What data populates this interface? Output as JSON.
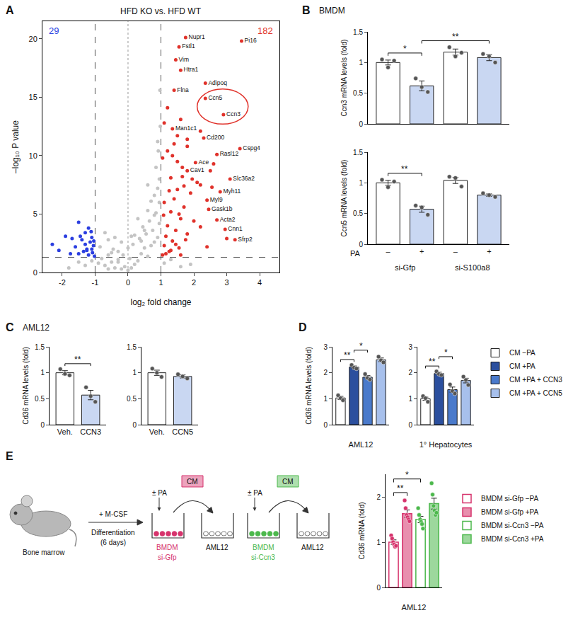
{
  "chart_data": [
    {
      "panel": "A",
      "type": "scatter",
      "title": "HFD KO vs. HFD WT",
      "x_label": "log₂ fold change",
      "y_label": "–log₁₀ P value",
      "xlim": [
        -2.6,
        4.6
      ],
      "xticks": [
        -2,
        -1,
        0,
        1,
        2,
        3,
        4
      ],
      "ylim": [
        0,
        21.5
      ],
      "yticks": [
        0,
        5,
        10,
        15,
        20
      ],
      "grid": false,
      "thresholds": {
        "x": [
          -1,
          1
        ],
        "y": 1.3,
        "center": 0
      },
      "counts": [
        {
          "label": "29",
          "color": "#2b3ee0"
        },
        {
          "label": "182",
          "color": "#e0322b"
        }
      ],
      "highlight": [
        "Ccn5",
        "Ccn3"
      ],
      "series": [
        {
          "color": "#c4c4c4",
          "x": [
            -0.9,
            -0.8,
            -0.7,
            -0.6,
            -0.5,
            -0.4,
            -0.3,
            -0.2,
            -0.1,
            0,
            0.1,
            0.2,
            0.3,
            0.4,
            0.5,
            0.6,
            0.7,
            0.8,
            0.9,
            -0.85,
            -0.6,
            -0.45,
            -0.3,
            -0.15,
            0.05,
            0.15,
            0.35,
            0.55,
            0.75,
            0.95,
            -0.7,
            -0.4,
            -0.2,
            0.2,
            0.45,
            0.65,
            0.85,
            0.95,
            -0.5,
            0.3,
            0.6,
            0.8,
            0.9,
            0.95,
            0.7,
            0.85,
            0.92,
            0.98,
            -1.5,
            -1.3,
            -1.1,
            1.1,
            1.3,
            1.6,
            -1.8,
            1.9,
            0.6,
            0.8,
            0.9,
            0.97,
            0.5,
            0.4,
            -0.3,
            -0.6,
            0.0,
            0.1
          ],
          "values": [
            0.8,
            1.2,
            0.6,
            1.5,
            0.9,
            0.4,
            1.1,
            0.3,
            0.5,
            0.2,
            0.4,
            0.7,
            1.0,
            1.6,
            2.1,
            1.4,
            2.3,
            2.6,
            3.0,
            2.2,
            2.8,
            2.0,
            1.8,
            1.5,
            1.2,
            2.4,
            2.9,
            3.3,
            3.6,
            4.2,
            3.4,
            3.0,
            2.6,
            3.2,
            3.9,
            4.4,
            5.1,
            6.0,
            1.7,
            4.6,
            5.3,
            6.6,
            7.2,
            8.0,
            6.1,
            9.0,
            10.4,
            12.5,
            0.9,
            0.6,
            1.0,
            0.8,
            1.1,
            0.5,
            0.4,
            0.7,
            7.5,
            4.9,
            11.2,
            15.6,
            3.6,
            2.7,
            0.9,
            0.3,
            2.1,
            3.1
          ]
        },
        {
          "color": "#2b3ee0",
          "x": [
            -2.3,
            -2.1,
            -1.9,
            -1.75,
            -1.6,
            -1.5,
            -1.4,
            -1.35,
            -1.3,
            -1.25,
            -1.2,
            -1.15,
            -1.1,
            -1.08,
            -1.05,
            -1.02,
            -1.5,
            -1.3,
            -1.2,
            -1.1,
            -1.7,
            -1.45,
            -1.25,
            -1.12,
            -1.04
          ],
          "values": [
            2.4,
            1.9,
            3.1,
            1.6,
            2.2,
            4.3,
            2.8,
            1.8,
            3.4,
            2.0,
            1.5,
            2.6,
            3.0,
            1.7,
            2.3,
            1.4,
            1.6,
            2.4,
            3.8,
            2.0,
            2.9,
            3.1,
            1.9,
            3.5,
            2.7
          ]
        },
        {
          "color": "#e0322b",
          "x": [
            1.05,
            1.1,
            1.15,
            1.2,
            1.25,
            1.3,
            1.35,
            1.4,
            1.45,
            1.5,
            1.55,
            1.6,
            1.65,
            1.7,
            1.8,
            1.9,
            2.0,
            2.1,
            2.2,
            2.5,
            2.55,
            2.6,
            1.05,
            1.1,
            1.2,
            1.3,
            1.4,
            1.5,
            1.6,
            1.7,
            1.8,
            1.95,
            2.2,
            1.1,
            1.2,
            1.35,
            1.5,
            1.65,
            1.8,
            2.2,
            1.15,
            1.3,
            1.45,
            1.6,
            1.75,
            2.4,
            3.0,
            1.08,
            1.25,
            1.55
          ],
          "values": [
            1.5,
            2.3,
            3.1,
            4.0,
            1.8,
            5.2,
            2.7,
            6.3,
            3.6,
            7.1,
            2.1,
            4.6,
            8.2,
            5.6,
            3.3,
            6.8,
            4.4,
            7.7,
            3.9,
            8.7,
            7.3,
            9.3,
            9.8,
            6.0,
            10.4,
            8.1,
            11.0,
            9.5,
            13.1,
            7.4,
            10.8,
            8.0,
            12.1,
            12.8,
            14.1,
            10.0,
            11.7,
            9.0,
            11.4,
            7.5,
            1.6,
            1.9,
            2.4,
            1.5,
            2.8,
            2.2,
            2.9,
            4.9,
            7.0,
            5.0
          ]
        },
        {
          "color": "#e0322b",
          "x": [
            1.75,
            1.55,
            3.45,
            1.45,
            1.6,
            2.35,
            1.4,
            2.35,
            2.9,
            1.35,
            2.3,
            3.4,
            2.7,
            2.05,
            1.8,
            3.1,
            2.8,
            2.4,
            2.45,
            2.7,
            2.95,
            3.25
          ],
          "values": [
            20.1,
            19.3,
            19.8,
            18.2,
            17.3,
            16.2,
            15.6,
            14.9,
            13.5,
            12.3,
            11.5,
            10.6,
            10.1,
            9.4,
            8.7,
            8.0,
            6.9,
            6.2,
            5.4,
            4.5,
            3.7,
            2.8
          ],
          "labels": [
            "Nupr1",
            "Fstl1",
            "Pi16",
            "Vim",
            "Htra1",
            "Adipoq",
            "Flna",
            "Ccn5",
            "Ccn3",
            "Man1c1",
            "Cd200",
            "Cspg4",
            "Rasl12",
            "Ace",
            "Cav1",
            "Slc36a2",
            "Myh11",
            "Myl9",
            "Gask1b",
            "Acta2",
            "Cnn1",
            "Sfrp2"
          ]
        }
      ]
    },
    {
      "panel": "B",
      "type": "bar",
      "title": "BMDM",
      "y_label": "Ccn3 mRNA levels (fold)",
      "categories": [
        "–",
        "+",
        "–",
        "+"
      ],
      "tick_labels": "y",
      "colors": [
        "#ffffff",
        "#c9d7f2",
        "#ffffff",
        "#c9d7f2"
      ],
      "values": [
        1.0,
        0.62,
        1.17,
        1.08
      ],
      "errors": [
        0.04,
        0.08,
        0.05,
        0.05
      ],
      "points": [
        [
          1.05,
          0.92,
          1.03
        ],
        [
          0.74,
          0.6,
          0.52
        ],
        [
          1.25,
          1.1,
          1.16
        ],
        [
          1.14,
          1.1,
          1.0
        ]
      ],
      "ylim": [
        0,
        1.5
      ],
      "yticks": [
        0,
        0.5,
        1,
        1.5
      ],
      "significance": [
        {
          "from": 0,
          "to": 1,
          "label": "*"
        },
        {
          "from": 1,
          "to": 3,
          "label": "**"
        }
      ]
    },
    {
      "type": "bar",
      "y_label": "Ccn5 mRNA levels (fold)",
      "categories": [
        "–",
        "+",
        "–",
        "+"
      ],
      "row_label": "PA",
      "groups": [
        {
          "label": "si-Gfp",
          "from": 0,
          "to": 1
        },
        {
          "label": "si-S100a8",
          "from": 2,
          "to": 3
        }
      ],
      "colors": [
        "#ffffff",
        "#c9d7f2",
        "#ffffff",
        "#c9d7f2"
      ],
      "values": [
        1.0,
        0.57,
        1.04,
        0.8
      ],
      "errors": [
        0.04,
        0.05,
        0.05,
        0.02
      ],
      "points": [
        [
          1.05,
          0.93,
          1.02
        ],
        [
          0.63,
          0.6,
          0.48
        ],
        [
          1.1,
          1.08,
          0.94
        ],
        [
          0.83,
          0.8,
          0.77
        ]
      ],
      "ylim": [
        0,
        1.5
      ],
      "yticks": [
        0,
        0.5,
        1,
        1.5
      ],
      "significance": [
        {
          "from": 0,
          "to": 1,
          "label": "**"
        }
      ]
    },
    {
      "panel": "C",
      "type": "bar",
      "title": "AML12",
      "y_label": "Cd36 mRNA levels (fold)",
      "categories": [
        "Veh.",
        "CCN3"
      ],
      "colors": [
        "#ffffff",
        "#c9d7f2"
      ],
      "values": [
        1.0,
        0.57
      ],
      "errors": [
        0.04,
        0.09
      ],
      "points": [
        [
          1.07,
          0.98,
          0.95
        ],
        [
          0.72,
          0.55,
          0.44
        ]
      ],
      "ylim": [
        0,
        1.5
      ],
      "yticks": [
        0,
        0.5,
        1,
        1.5
      ],
      "significance": [
        {
          "from": 0,
          "to": 1,
          "label": "**"
        }
      ]
    },
    {
      "type": "bar",
      "categories": [
        "Veh.",
        "CCN5"
      ],
      "colors": [
        "#ffffff",
        "#c9d7f2"
      ],
      "values": [
        1.0,
        0.93
      ],
      "errors": [
        0.05,
        0.03
      ],
      "points": [
        [
          1.08,
          1.0,
          0.92
        ],
        [
          0.97,
          0.93,
          0.89
        ]
      ],
      "ylim": [
        0,
        1.5
      ],
      "yticks": [
        0,
        0.5,
        1,
        1.5
      ]
    },
    {
      "panel": "D",
      "type": "bar",
      "x_label": "AML12",
      "y_label": "Cd36 mRNA levels (fold)",
      "tick_labels": "y",
      "legend": "right",
      "ylim": [
        0,
        3
      ],
      "yticks": [
        0,
        1,
        2,
        3
      ],
      "series": [
        {
          "name": "CM −PA",
          "color": "#ffffff",
          "values": [
            1.03
          ],
          "errors": [
            0.06
          ],
          "points": [
            [
              1.13,
              1.02,
              0.94
            ]
          ]
        },
        {
          "name": "CM +PA",
          "color": "#2b4f9e",
          "values": [
            2.22
          ],
          "errors": [
            0.04
          ],
          "points": [
            [
              2.3,
              2.2,
              2.16
            ]
          ]
        },
        {
          "name": "CM +PA + CCN3",
          "color": "#4a7acb",
          "values": [
            1.83
          ],
          "errors": [
            0.06
          ],
          "points": [
            [
              1.95,
              1.8,
              1.74
            ]
          ]
        },
        {
          "name": "CM +PA + CCN5",
          "color": "#a7c0ec",
          "values": [
            2.5
          ],
          "errors": [
            0.07
          ],
          "points": [
            [
              2.62,
              2.48,
              2.4
            ]
          ]
        }
      ],
      "significance": [
        {
          "from": 0,
          "to": 1,
          "label": "**"
        },
        {
          "from": 1,
          "to": 2,
          "label": "*"
        }
      ]
    },
    {
      "type": "bar",
      "x_label": "1° Hepatocytes",
      "tick_labels": "y",
      "ylim": [
        0,
        3
      ],
      "yticks": [
        0,
        1,
        2,
        3
      ],
      "series": [
        {
          "name": "CM −PA",
          "color": "#ffffff",
          "values": [
            1.0
          ],
          "errors": [
            0.06
          ],
          "points": [
            [
              1.1,
              1.02,
              0.88
            ]
          ]
        },
        {
          "name": "CM +PA",
          "color": "#2b4f9e",
          "values": [
            1.97
          ],
          "errors": [
            0.05
          ],
          "points": [
            [
              2.05,
              1.95,
              1.91
            ]
          ]
        },
        {
          "name": "CM +PA + CCN3",
          "color": "#4a7acb",
          "values": [
            1.35
          ],
          "errors": [
            0.1
          ],
          "points": [
            [
              1.55,
              1.3,
              1.2
            ]
          ]
        },
        {
          "name": "CM +PA + CCN5",
          "color": "#a7c0ec",
          "values": [
            1.7
          ],
          "errors": [
            0.09
          ],
          "points": [
            [
              1.85,
              1.72,
              1.53
            ]
          ]
        }
      ],
      "significance": [
        {
          "from": 0,
          "to": 1,
          "label": "**"
        },
        {
          "from": 1,
          "to": 2,
          "label": "*"
        }
      ]
    },
    {
      "type": "bar",
      "x_label": "AML12",
      "y_label": "Cd36 mRNA (fold)",
      "tick_labels": "y",
      "legend": "right",
      "ylim": [
        0,
        2.5
      ],
      "yticks": [
        0,
        1,
        2
      ],
      "series": [
        {
          "name": "BMDM si-Gfp −PA",
          "color": "#d6336c",
          "marker": "open",
          "values": [
            1.0
          ],
          "errors": [
            0.05
          ],
          "points": [
            [
              1.15,
              1.08,
              1.0,
              0.95,
              0.9,
              0.92
            ]
          ]
        },
        {
          "name": "BMDM si-Gfp +PA",
          "color": "#d6336c",
          "marker": "filled",
          "values": [
            1.63
          ],
          "errors": [
            0.08
          ],
          "points": [
            [
              1.92,
              1.75,
              1.6,
              1.55,
              1.5,
              1.46
            ]
          ]
        },
        {
          "name": "BMDM si-Ccn3 −PA",
          "color": "#4cb84c",
          "marker": "open",
          "values": [
            1.5
          ],
          "errors": [
            0.07
          ],
          "points": [
            [
              1.75,
              1.6,
              1.5,
              1.45,
              1.4,
              1.3
            ]
          ]
        },
        {
          "name": "BMDM si-Ccn3 +PA",
          "color": "#4cb84c",
          "marker": "filled",
          "values": [
            1.85
          ],
          "errors": [
            0.12
          ],
          "points": [
            [
              2.3,
              2.05,
              1.8,
              1.7,
              1.6,
              1.65
            ]
          ]
        }
      ],
      "significance": [
        {
          "from": 0,
          "to": 1,
          "label": "**"
        },
        {
          "from": 0,
          "to": 2,
          "label": "*"
        }
      ]
    }
  ],
  "diagram": {
    "panel": "E",
    "source": {
      "label": "Bone marrow",
      "step": "+ M-CSF",
      "duration": [
        "Differentiation",
        "(6 days)"
      ]
    },
    "arms": [
      {
        "treatment": "± PA",
        "medium": "CM",
        "cells": "BMDM",
        "sirna": "si-Gfp",
        "target": "AML12",
        "color": "#d6336c"
      },
      {
        "treatment": "± PA",
        "medium": "CM",
        "cells": "BMDM",
        "sirna": "si-Ccn3",
        "target": "AML12",
        "color": "#4cb84c"
      }
    ]
  }
}
